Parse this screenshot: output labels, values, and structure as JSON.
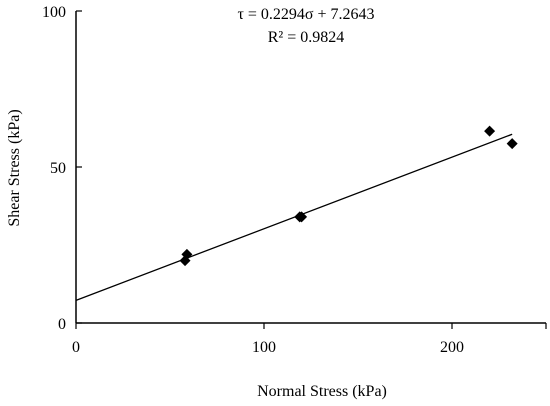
{
  "chart_data": {
    "type": "scatter",
    "xlabel": "Normal Stress (kPa)",
    "ylabel": "Shear Stress (kPa)",
    "xlim": [
      0,
      250
    ],
    "ylim": [
      0,
      100
    ],
    "x_ticks": [
      0,
      100,
      200
    ],
    "y_ticks": [
      0,
      50,
      100
    ],
    "x_tick_labels": [
      "0",
      "100",
      "200"
    ],
    "y_tick_labels": [
      "0",
      "50",
      "100"
    ],
    "points": [
      {
        "x": 58,
        "y": 20
      },
      {
        "x": 59,
        "y": 22
      },
      {
        "x": 119,
        "y": 34
      },
      {
        "x": 120,
        "y": 34
      },
      {
        "x": 220,
        "y": 61.5
      },
      {
        "x": 232,
        "y": 57.5
      }
    ],
    "trendline": {
      "slope": 0.2294,
      "intercept": 7.2643,
      "x_range": [
        0,
        232
      ]
    },
    "equation": "τ = 0.2294σ + 7.2643",
    "r_squared": "R² = 0.9824",
    "grid": false,
    "legend": "none"
  }
}
